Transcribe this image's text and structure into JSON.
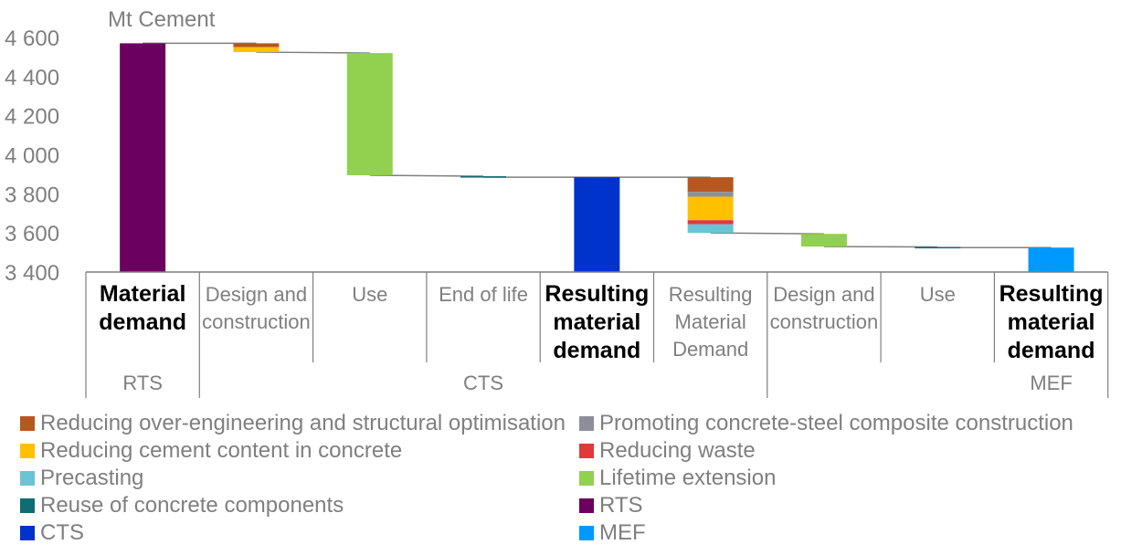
{
  "chart_data": {
    "type": "waterfall",
    "unit_label": "Mt Cement",
    "ylim": [
      3400,
      4600
    ],
    "y_ticks": [
      "3 400",
      "3 600",
      "3 800",
      "4 000",
      "4 200",
      "4 400",
      "4 600"
    ],
    "y_tick_values": [
      3400,
      3600,
      3800,
      4000,
      4200,
      4400,
      4600
    ],
    "categories": [
      {
        "label": "Material demand",
        "bold": true
      },
      {
        "label": "Design and construction",
        "bold": false
      },
      {
        "label": "Use",
        "bold": false
      },
      {
        "label": "End of life",
        "bold": false
      },
      {
        "label": "Resulting material demand",
        "bold": true
      },
      {
        "label": "Resulting Material Demand",
        "bold": false
      },
      {
        "label": "Design and construction",
        "bold": false
      },
      {
        "label": "Use",
        "bold": false
      },
      {
        "label": "Resulting material demand",
        "bold": true
      }
    ],
    "groups": [
      {
        "label": "RTS",
        "span": [
          0,
          0
        ]
      },
      {
        "label": "CTS",
        "span": [
          1,
          5
        ]
      },
      {
        "label": "MEF",
        "span": [
          6,
          8
        ]
      }
    ],
    "bars": [
      {
        "index": 0,
        "segments": [
          {
            "series": "RTS",
            "from": 3400,
            "to": 4570
          }
        ]
      },
      {
        "index": 1,
        "segments": [
          {
            "series": "Reducing over-engineering and structural optimisation",
            "from": 4570,
            "to": 4550
          },
          {
            "series": "Reducing cement content in concrete",
            "from": 4550,
            "to": 4525
          }
        ]
      },
      {
        "index": 2,
        "segments": [
          {
            "series": "Lifetime extension",
            "from": 4520,
            "to": 3895
          }
        ]
      },
      {
        "index": 3,
        "segments": [
          {
            "series": "Reuse of concrete components",
            "from": 3890,
            "to": 3885
          }
        ]
      },
      {
        "index": 4,
        "segments": [
          {
            "series": "CTS",
            "from": 3400,
            "to": 3885
          }
        ]
      },
      {
        "index": 5,
        "segments": [
          {
            "series": "Reducing over-engineering and structural optimisation",
            "from": 3885,
            "to": 3810
          },
          {
            "series": "Promoting concrete-steel composite construction",
            "from": 3810,
            "to": 3785
          },
          {
            "series": "Reducing cement content in concrete",
            "from": 3785,
            "to": 3665
          },
          {
            "series": "Reducing waste",
            "from": 3665,
            "to": 3645
          },
          {
            "series": "Precasting",
            "from": 3645,
            "to": 3600
          }
        ]
      },
      {
        "index": 6,
        "segments": [
          {
            "series": "Lifetime extension",
            "from": 3595,
            "to": 3530
          }
        ]
      },
      {
        "index": 7,
        "segments": [
          {
            "series": "Reuse of concrete components",
            "from": 3528,
            "to": 3525
          }
        ]
      },
      {
        "index": 8,
        "segments": [
          {
            "series": "MEF",
            "from": 3400,
            "to": 3525
          }
        ]
      }
    ],
    "connectors": [
      {
        "from": 0,
        "to": 1,
        "y1": 4570,
        "y2": 4570
      },
      {
        "from": 1,
        "to": 2,
        "y1": 4525,
        "y2": 4520
      },
      {
        "from": 2,
        "to": 3,
        "y1": 3895,
        "y2": 3890
      },
      {
        "from": 3,
        "to": 4,
        "y1": 3885,
        "y2": 3885
      },
      {
        "from": 4,
        "to": 5,
        "y1": 3885,
        "y2": 3885
      },
      {
        "from": 5,
        "to": 6,
        "y1": 3600,
        "y2": 3595
      },
      {
        "from": 6,
        "to": 7,
        "y1": 3530,
        "y2": 3528
      },
      {
        "from": 7,
        "to": 8,
        "y1": 3525,
        "y2": 3525
      }
    ],
    "legend": [
      {
        "name": "Reducing over-engineering and structural optimisation",
        "color": "#b5571f"
      },
      {
        "name": "Promoting concrete-steel composite construction",
        "color": "#8e8e9a"
      },
      {
        "name": "Reducing cement content in concrete",
        "color": "#ffc000"
      },
      {
        "name": "Reducing waste",
        "color": "#e2383a"
      },
      {
        "name": "Precasting",
        "color": "#6cc3d5"
      },
      {
        "name": "Lifetime extension",
        "color": "#92d050"
      },
      {
        "name": "Reuse of concrete components",
        "color": "#0f6c72"
      },
      {
        "name": "RTS",
        "color": "#6b0060"
      },
      {
        "name": "CTS",
        "color": "#0033cc"
      },
      {
        "name": "MEF",
        "color": "#0099ff"
      }
    ],
    "legend_placement": "bottom",
    "grid": false
  }
}
